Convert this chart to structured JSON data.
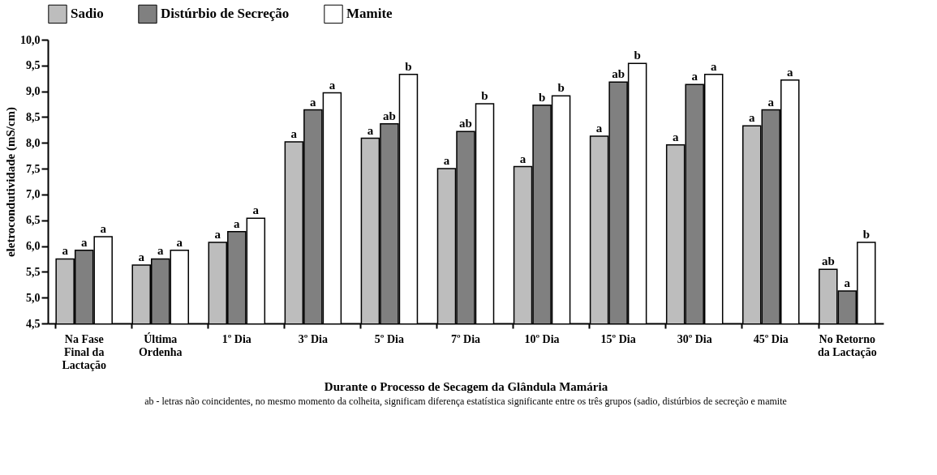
{
  "chart_data": {
    "type": "bar",
    "xlabel": "Durante o Processo de Secagem da Glândula Mamária",
    "ylabel": "eletrocondutividade (mS/cm)",
    "categories": [
      "Na Fase\nFinal da\nLactação",
      "Última\nOrdenha",
      "1º Dia",
      "3º Dia",
      "5º Dia",
      "7º Dia",
      "10º Dia",
      "15º Dia",
      "30º Dia",
      "45º Dia",
      "No Retorno\nda Lactação"
    ],
    "series": [
      {
        "name": "Sadio",
        "color": "#bdbdbd",
        "values": [
          5.75,
          5.63,
          6.07,
          8.02,
          8.09,
          7.5,
          7.54,
          8.13,
          7.96,
          8.33,
          5.55
        ],
        "value_labels": [
          "a",
          "a",
          "a",
          "a",
          "a",
          "a",
          "a",
          "a",
          "a",
          "a",
          "ab"
        ]
      },
      {
        "name": "Distúrbio de Secreção",
        "color": "#808080",
        "values": [
          5.92,
          5.75,
          6.28,
          8.64,
          8.37,
          8.22,
          8.73,
          9.18,
          9.13,
          8.64,
          5.13
        ],
        "value_labels": [
          "a",
          "a",
          "a",
          "a",
          "ab",
          "ab",
          "b",
          "ab",
          "a",
          "a",
          "a"
        ]
      },
      {
        "name": "Mamite",
        "color": "#ffffff",
        "values": [
          6.18,
          5.92,
          6.54,
          8.97,
          9.33,
          8.76,
          8.91,
          9.54,
          9.33,
          9.22,
          6.07
        ],
        "value_labels": [
          "a",
          "a",
          "a",
          "a",
          "b",
          "b",
          "b",
          "b",
          "a",
          "a",
          "b"
        ]
      }
    ],
    "ylim": [
      4.5,
      10.0
    ],
    "yticks": [
      {
        "value": 4.5,
        "label": "4,5"
      },
      {
        "value": 5.0,
        "label": "5,0"
      },
      {
        "value": 5.5,
        "label": "5,5"
      },
      {
        "value": 6.0,
        "label": "6,0"
      },
      {
        "value": 6.5,
        "label": "6,5"
      },
      {
        "value": 7.0,
        "label": "7,0"
      },
      {
        "value": 7.5,
        "label": "7,5"
      },
      {
        "value": 8.0,
        "label": "8,0"
      },
      {
        "value": 8.5,
        "label": "8,5"
      },
      {
        "value": 9.0,
        "label": "9,0"
      },
      {
        "value": 9.5,
        "label": "9,5"
      },
      {
        "value": 10.0,
        "label": "10,0"
      }
    ],
    "grid": false,
    "legend": "top",
    "annotations": [
      "ab - letras não coincidentes, no mesmo momento da colheita, significam diferença estatística significante entre os três grupos (sadio, distúrbios de secreção e mamite"
    ]
  }
}
